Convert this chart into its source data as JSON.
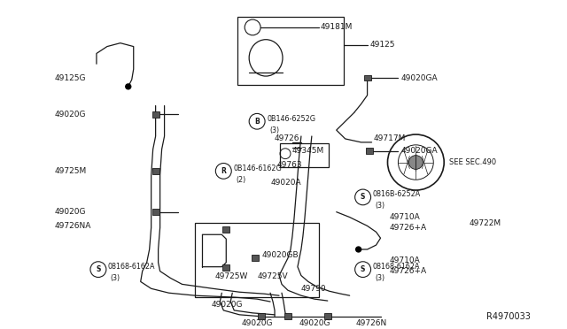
{
  "bg_color": "#ffffff",
  "line_color": "#1a1a1a",
  "diagram_id": "R4970033",
  "figsize": [
    6.4,
    3.72
  ],
  "dpi": 100,
  "xlim": [
    0,
    640
  ],
  "ylim": [
    0,
    372
  ]
}
